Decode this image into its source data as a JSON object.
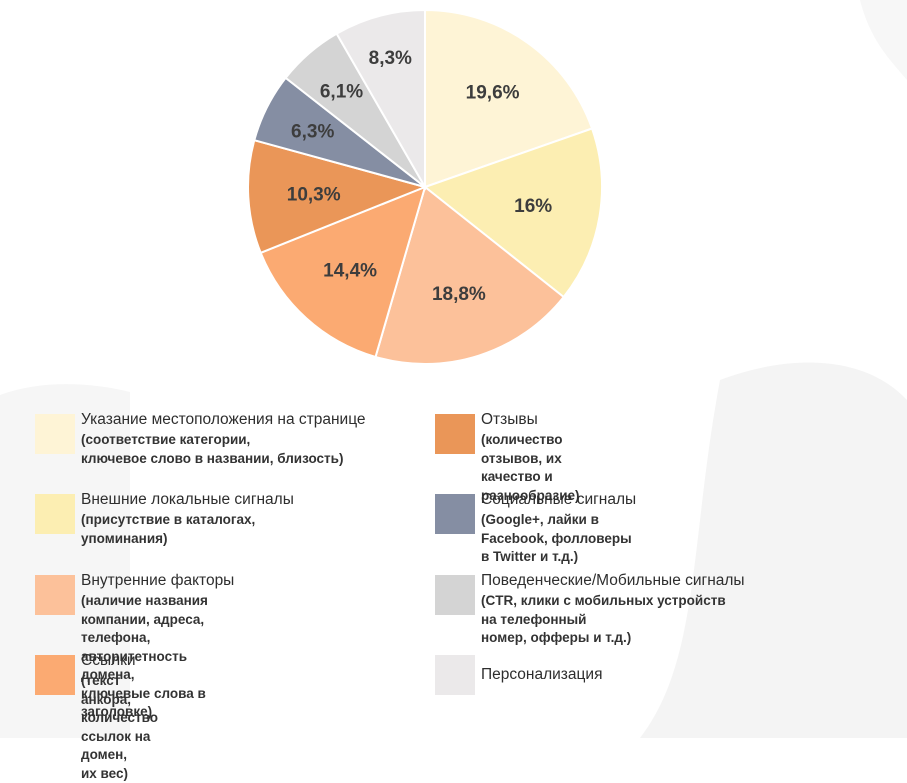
{
  "chart_data": {
    "type": "pie",
    "title": "",
    "slices": [
      {
        "value": 19.6,
        "label": "19,6%",
        "color": "#fef4d6"
      },
      {
        "value": 16.0,
        "label": "16%",
        "color": "#fceeb2"
      },
      {
        "value": 18.8,
        "label": "18,8%",
        "color": "#fcc19a"
      },
      {
        "value": 14.4,
        "label": "14,4%",
        "color": "#fbaa72"
      },
      {
        "value": 10.3,
        "label": "10,3%",
        "color": "#ea9658"
      },
      {
        "value": 6.3,
        "label": "6,3%",
        "color": "#858ea3"
      },
      {
        "value": 6.1,
        "label": "6,1%",
        "color": "#d4d4d4"
      },
      {
        "value": 8.3,
        "label": "8,3%",
        "color": "#ebe9ea"
      }
    ],
    "legend": {
      "placement": "bottom",
      "left_column": [
        {
          "title": "Указание местоположения на странице",
          "desc": "(соответствие категории,\nключевое слово в названии, близость)",
          "color": "#fef4d6"
        },
        {
          "title": "Внешние локальные сигналы",
          "desc": "(присутствие в каталогах, упоминания)",
          "color": "#fceeb2"
        },
        {
          "title": "Внутренние факторы",
          "desc": "(наличие названия компании, адреса, телефона,\nавторитетность домена,\nключевые слова в заголовке)",
          "color": "#fcc19a"
        },
        {
          "title": "Ссылки",
          "desc": "(текст анкора, количество ссылок на домен,\nих вес)",
          "color": "#fbaa72"
        }
      ],
      "right_column": [
        {
          "title": "Отзывы",
          "desc": "(количество отзывов, их качество и разнообразие)",
          "color": "#ea9658"
        },
        {
          "title": "Социальные сигналы",
          "desc": "(Google+, лайки в Facebook, фолловеры в Twitter и т.д.)",
          "color": "#858ea3"
        },
        {
          "title": "Поведенческие/Мобильные сигналы",
          "desc": "(CTR, клики с мобильных устройств на телефонный\nномер, офферы и т.д.)",
          "color": "#d4d4d4"
        },
        {
          "title": "Персонализация",
          "desc": "",
          "color": "#ebe9ea"
        }
      ]
    }
  }
}
